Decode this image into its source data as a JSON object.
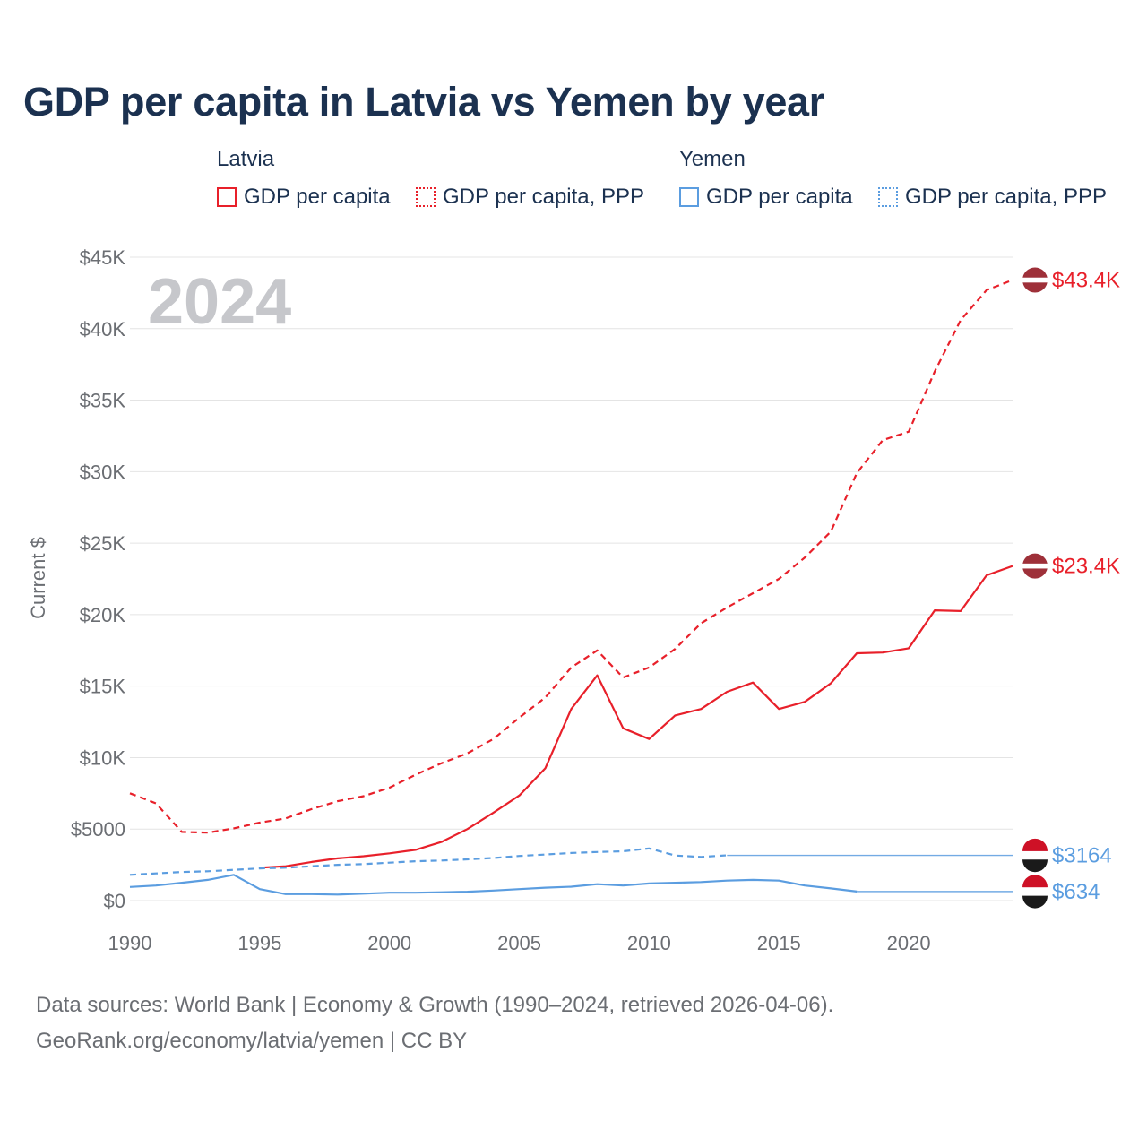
{
  "colors": {
    "latvia": "#e8202a",
    "yemen": "#5b9de0",
    "title": "#1b3150",
    "grid": "#e4e4e4",
    "tick": "#6b6e73",
    "watermark": "#c6c7cb"
  },
  "chart_data": {
    "type": "line",
    "title": "GDP per capita in Latvia vs Yemen by year",
    "xlabel": "",
    "ylabel": "Current $",
    "xlim": [
      1990,
      2024
    ],
    "ylim": [
      0,
      45000
    ],
    "year_watermark": "2024",
    "x_ticks": [
      1990,
      1995,
      2000,
      2005,
      2010,
      2015,
      2020
    ],
    "x_tick_labels": [
      "1990",
      "1995",
      "2000",
      "2005",
      "2010",
      "2015",
      "2020"
    ],
    "y_ticks": [
      0,
      5000,
      10000,
      15000,
      20000,
      25000,
      30000,
      35000,
      40000,
      45000
    ],
    "y_tick_labels": [
      "$0",
      "$5000",
      "$10K",
      "$15K",
      "$20K",
      "$25K",
      "$30K",
      "$35K",
      "$40K",
      "$45K"
    ],
    "legend": {
      "groups": [
        {
          "name": "Latvia",
          "items": [
            "GDP per capita",
            "GDP per capita, PPP"
          ]
        },
        {
          "name": "Yemen",
          "items": [
            "GDP per capita",
            "GDP per capita, PPP"
          ]
        }
      ]
    },
    "series": [
      {
        "name": "Latvia GDP per capita, PPP",
        "country": "Latvia",
        "style": "dashed",
        "x": [
          1990,
          1991,
          1992,
          1993,
          1994,
          1995,
          1996,
          1997,
          1998,
          1999,
          2000,
          2001,
          2002,
          2003,
          2004,
          2005,
          2006,
          2007,
          2008,
          2009,
          2010,
          2011,
          2012,
          2013,
          2014,
          2015,
          2016,
          2017,
          2018,
          2019,
          2020,
          2021,
          2022,
          2023,
          2024
        ],
        "values": [
          7500,
          6800,
          4800,
          4750,
          5050,
          5450,
          5750,
          6400,
          6950,
          7300,
          7900,
          8800,
          9600,
          10300,
          11300,
          12800,
          14200,
          16300,
          17500,
          15600,
          16300,
          17600,
          19400,
          20500,
          21500,
          22500,
          24000,
          25800,
          29900,
          32200,
          32800,
          37000,
          40600,
          42700,
          43400
        ],
        "end_label": "$43.4K"
      },
      {
        "name": "Latvia GDP per capita",
        "country": "Latvia",
        "style": "solid",
        "x": [
          1995,
          1996,
          1997,
          1998,
          1999,
          2000,
          2001,
          2002,
          2003,
          2004,
          2005,
          2006,
          2007,
          2008,
          2009,
          2010,
          2011,
          2012,
          2013,
          2014,
          2015,
          2016,
          2017,
          2018,
          2019,
          2020,
          2021,
          2022,
          2023,
          2024
        ],
        "values": [
          2300,
          2400,
          2700,
          2950,
          3100,
          3300,
          3550,
          4100,
          5000,
          6150,
          7350,
          9250,
          13400,
          15750,
          12050,
          11300,
          12950,
          13400,
          14600,
          15250,
          13400,
          13900,
          15200,
          17300,
          17350,
          17650,
          20300,
          20250,
          22750,
          23400
        ],
        "end_label": "$23.4K"
      },
      {
        "name": "Yemen GDP per capita, PPP",
        "country": "Yemen",
        "style": "dashed",
        "x": [
          1990,
          1991,
          1992,
          1993,
          1994,
          1995,
          1996,
          1997,
          1998,
          1999,
          2000,
          2001,
          2002,
          2003,
          2004,
          2005,
          2006,
          2007,
          2008,
          2009,
          2010,
          2011,
          2012,
          2013
        ],
        "values": [
          1800,
          1900,
          2000,
          2050,
          2150,
          2250,
          2300,
          2400,
          2500,
          2550,
          2650,
          2750,
          2800,
          2880,
          2980,
          3120,
          3220,
          3330,
          3400,
          3450,
          3650,
          3150,
          3050,
          3164
        ],
        "carried_forward_to": 2024,
        "end_label": "$3164"
      },
      {
        "name": "Yemen GDP per capita",
        "country": "Yemen",
        "style": "solid",
        "x": [
          1990,
          1991,
          1992,
          1993,
          1994,
          1995,
          1996,
          1997,
          1998,
          1999,
          2000,
          2001,
          2002,
          2003,
          2004,
          2005,
          2006,
          2007,
          2008,
          2009,
          2010,
          2011,
          2012,
          2013,
          2014,
          2015,
          2016,
          2017,
          2018
        ],
        "values": [
          950,
          1050,
          1250,
          1450,
          1800,
          800,
          450,
          450,
          420,
          480,
          550,
          550,
          580,
          620,
          700,
          800,
          900,
          970,
          1150,
          1050,
          1200,
          1250,
          1300,
          1400,
          1450,
          1400,
          1050,
          850,
          634
        ],
        "carried_forward_to": 2024,
        "end_label": "$634"
      }
    ]
  },
  "footer": {
    "line1": "Data sources: World Bank | Economy & Growth (1990–2024, retrieved 2026-04-06).",
    "line2": "GeoRank.org/economy/latvia/yemen | CC BY"
  }
}
